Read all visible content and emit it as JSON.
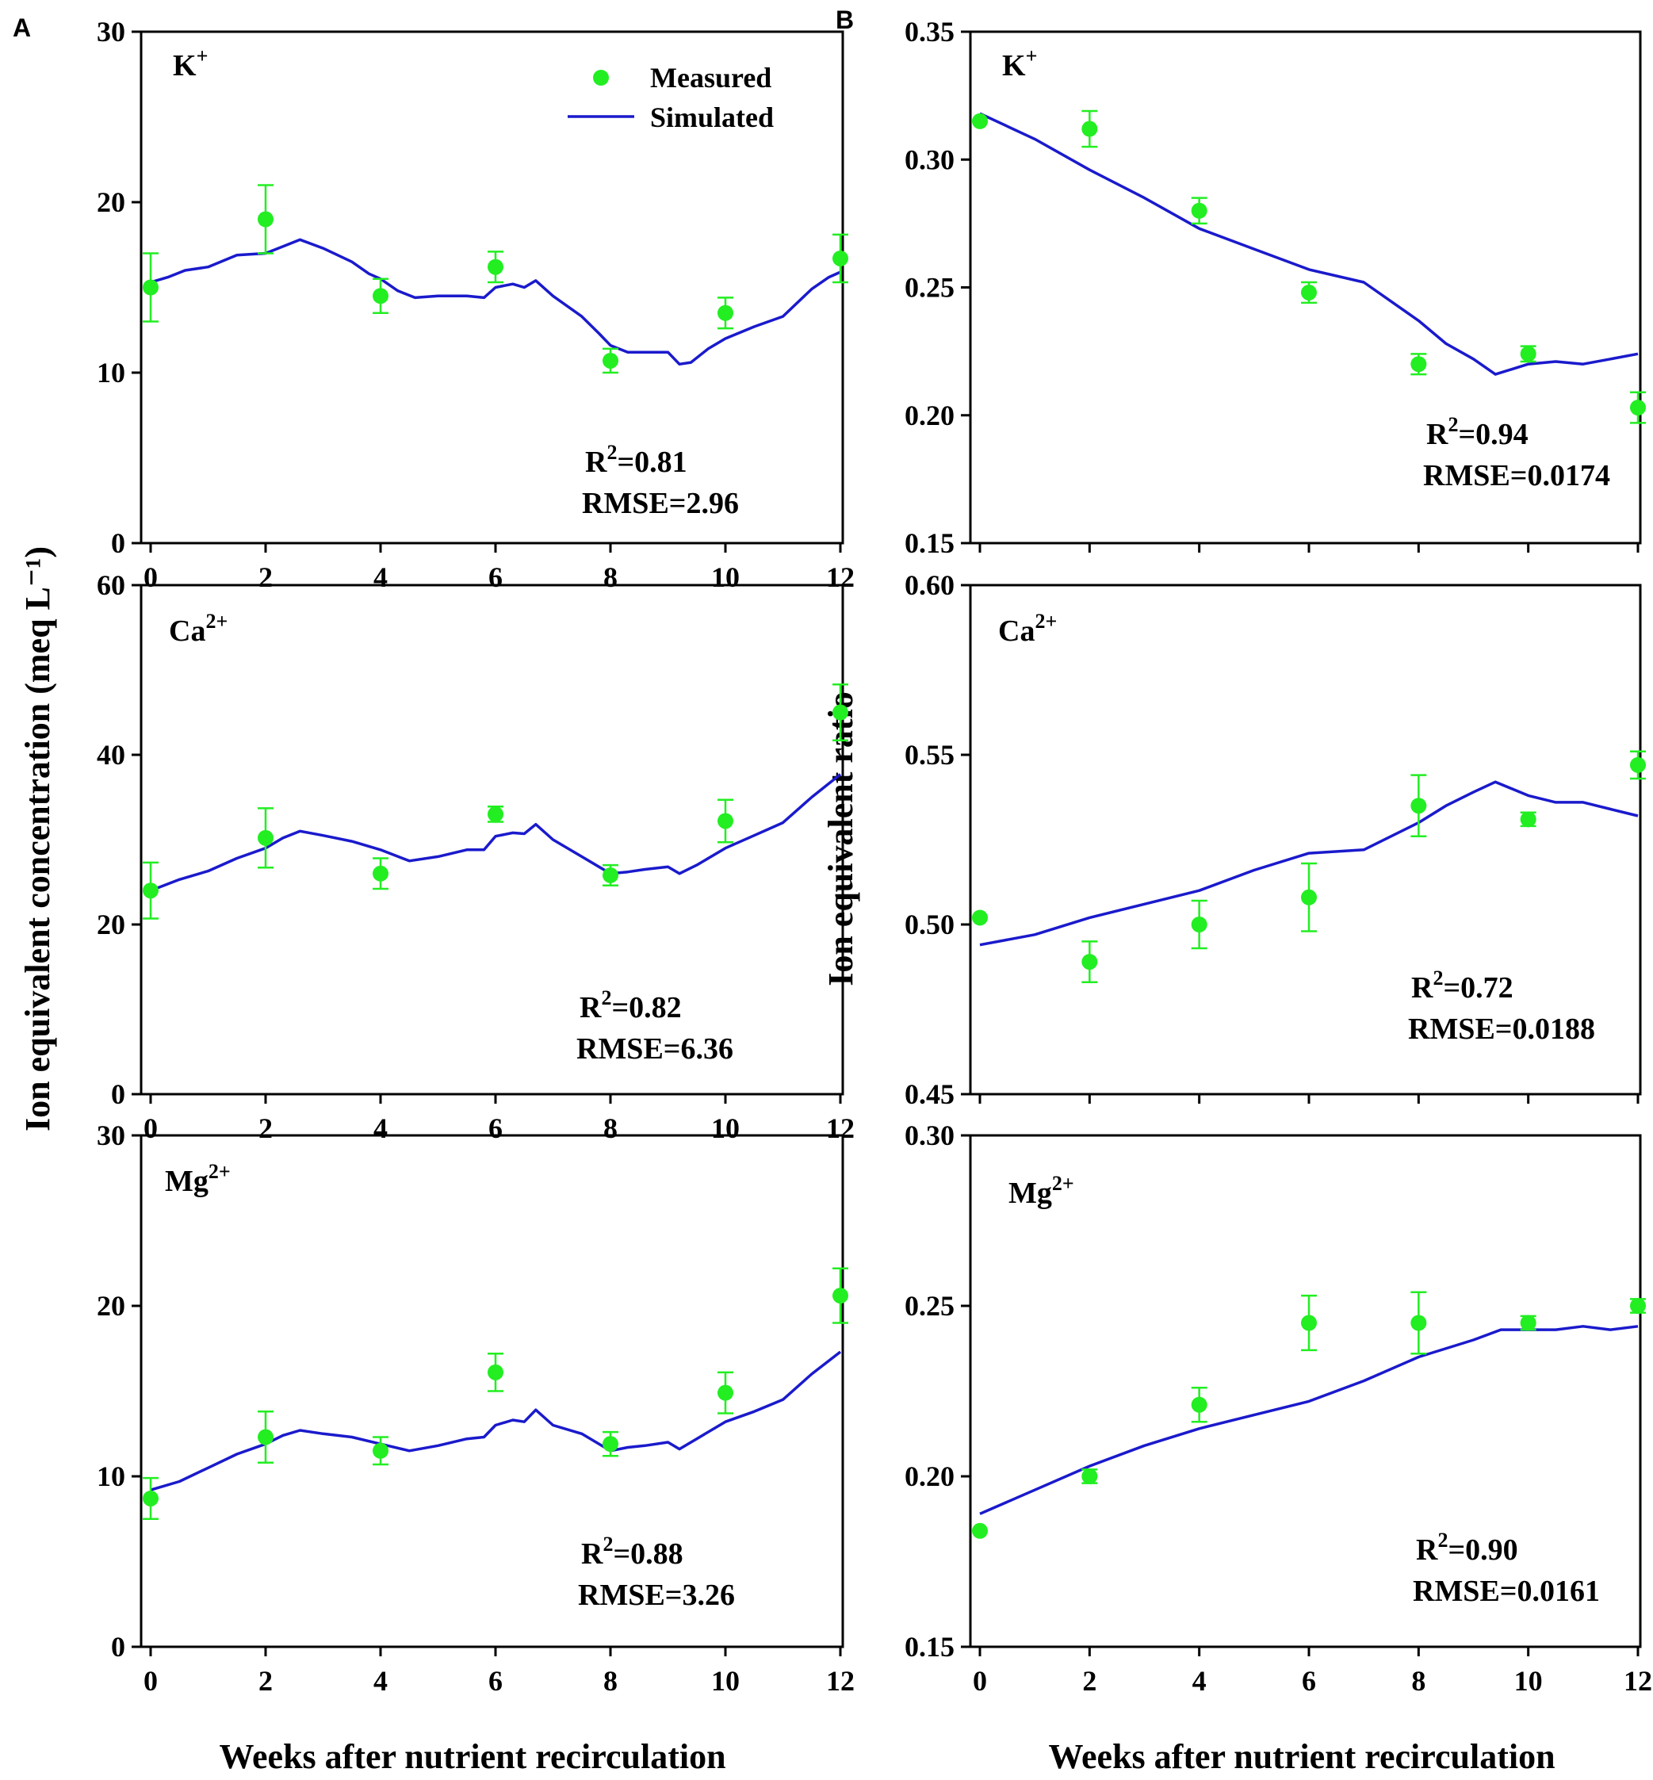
{
  "figure": {
    "panel_letters": [
      "A",
      "B"
    ],
    "ylabel_left": "Ion equivalent concentration (meq L⁻¹)",
    "ylabel_right": "Ion equivalent ratio",
    "xlabel": "Weeks after nutrient recirculation",
    "legend": {
      "measured": "Measured",
      "simulated": "Simulated"
    },
    "colors": {
      "measured": "#22ee22",
      "simulated": "#1a1acc",
      "frame": "#000000"
    }
  },
  "chart_data": [
    {
      "id": "A-K",
      "type": "line+scatter",
      "ion": "K",
      "ion_sup": "+",
      "xlim": [
        0,
        12
      ],
      "ylim": [
        0,
        30
      ],
      "yticks": [
        "0",
        "10",
        "20",
        "30"
      ],
      "xticks": [
        "0",
        "2",
        "4",
        "6",
        "8",
        "10",
        "12"
      ],
      "measured": {
        "x": [
          0,
          2,
          4,
          6,
          8,
          10,
          12
        ],
        "y": [
          15.0,
          19.0,
          14.5,
          16.2,
          10.7,
          13.5,
          16.7
        ],
        "err": [
          2.0,
          2.0,
          1.0,
          0.9,
          0.7,
          0.9,
          1.4
        ]
      },
      "simulated": {
        "x": [
          0,
          0.3,
          0.6,
          1.0,
          1.5,
          2.0,
          2.3,
          2.6,
          3.0,
          3.5,
          3.8,
          4.0,
          4.3,
          4.6,
          5.0,
          5.5,
          5.8,
          6.0,
          6.3,
          6.5,
          6.7,
          7.0,
          7.5,
          7.8,
          8.0,
          8.3,
          8.6,
          9.0,
          9.2,
          9.4,
          9.7,
          10.0,
          10.5,
          11.0,
          11.5,
          11.8,
          12.0
        ],
        "y": [
          15.3,
          15.6,
          16.0,
          16.2,
          16.9,
          17.0,
          17.4,
          17.8,
          17.3,
          16.5,
          15.8,
          15.5,
          14.8,
          14.4,
          14.5,
          14.5,
          14.4,
          15.0,
          15.2,
          15.0,
          15.4,
          14.5,
          13.3,
          12.3,
          11.6,
          11.2,
          11.2,
          11.2,
          10.5,
          10.6,
          11.4,
          12.0,
          12.7,
          13.3,
          14.9,
          15.6,
          15.9
        ]
      },
      "stats": {
        "r2_label": "R",
        "r2_value": "=0.81",
        "rmse": "RMSE=2.96"
      }
    },
    {
      "id": "A-Ca",
      "type": "line+scatter",
      "ion": "Ca",
      "ion_sup": "2+",
      "xlim": [
        0,
        12
      ],
      "ylim": [
        0,
        60
      ],
      "yticks": [
        "0",
        "20",
        "40",
        "60"
      ],
      "xticks": [
        "0",
        "2",
        "4",
        "6",
        "8",
        "10",
        "12"
      ],
      "measured": {
        "x": [
          0,
          2,
          4,
          6,
          8,
          10,
          12
        ],
        "y": [
          24.0,
          30.2,
          26.0,
          33.0,
          25.8,
          32.2,
          45.0
        ],
        "err": [
          3.3,
          3.5,
          1.8,
          0.9,
          1.2,
          2.5,
          3.3
        ]
      },
      "simulated": {
        "x": [
          0,
          0.5,
          1.0,
          1.5,
          2.0,
          2.3,
          2.6,
          3.0,
          3.5,
          4.0,
          4.5,
          5.0,
          5.5,
          5.8,
          6.0,
          6.3,
          6.5,
          6.7,
          7.0,
          7.5,
          8.0,
          8.3,
          8.6,
          9.0,
          9.2,
          9.5,
          10.0,
          10.5,
          11.0,
          11.5,
          12.0
        ],
        "y": [
          24.0,
          25.3,
          26.3,
          27.8,
          29.0,
          30.2,
          31.0,
          30.5,
          29.8,
          28.8,
          27.5,
          28.0,
          28.8,
          28.8,
          30.4,
          30.8,
          30.7,
          31.8,
          30.0,
          28.0,
          26.0,
          26.2,
          26.5,
          26.8,
          26.0,
          27.0,
          29.0,
          30.5,
          32.0,
          35.0,
          37.7
        ]
      },
      "stats": {
        "r2_label": "R",
        "r2_value": "=0.82",
        "rmse": "RMSE=6.36"
      }
    },
    {
      "id": "A-Mg",
      "type": "line+scatter",
      "ion": "Mg",
      "ion_sup": "2+",
      "xlim": [
        0,
        12
      ],
      "ylim": [
        0,
        30
      ],
      "yticks": [
        "0",
        "10",
        "20",
        "30"
      ],
      "xticks": [
        "0",
        "2",
        "4",
        "6",
        "8",
        "10",
        "12"
      ],
      "measured": {
        "x": [
          0,
          2,
          4,
          6,
          8,
          10,
          12
        ],
        "y": [
          8.7,
          12.3,
          11.5,
          16.1,
          11.9,
          14.9,
          20.6
        ],
        "err": [
          1.2,
          1.5,
          0.8,
          1.1,
          0.7,
          1.2,
          1.6
        ]
      },
      "simulated": {
        "x": [
          0,
          0.5,
          1.0,
          1.5,
          2.0,
          2.3,
          2.6,
          3.0,
          3.5,
          4.0,
          4.5,
          5.0,
          5.5,
          5.8,
          6.0,
          6.3,
          6.5,
          6.7,
          7.0,
          7.5,
          8.0,
          8.3,
          8.6,
          9.0,
          9.2,
          9.5,
          10.0,
          10.5,
          11.0,
          11.5,
          12.0
        ],
        "y": [
          9.2,
          9.7,
          10.5,
          11.3,
          11.9,
          12.4,
          12.7,
          12.5,
          12.3,
          11.9,
          11.5,
          11.8,
          12.2,
          12.3,
          13.0,
          13.3,
          13.2,
          13.9,
          13.0,
          12.5,
          11.5,
          11.7,
          11.8,
          12.0,
          11.6,
          12.2,
          13.2,
          13.8,
          14.5,
          16.0,
          17.3
        ]
      },
      "stats": {
        "r2_label": "R",
        "r2_value": "=0.88",
        "rmse": "RMSE=3.26"
      }
    },
    {
      "id": "B-K",
      "type": "line+scatter",
      "ion": "K",
      "ion_sup": "+",
      "xlim": [
        0,
        12
      ],
      "ylim": [
        0.15,
        0.35
      ],
      "yticks": [
        "0.15",
        "0.20",
        "0.25",
        "0.30",
        "0.35"
      ],
      "xticks": [
        "",
        "",
        "",
        "",
        "",
        "",
        ""
      ],
      "measured": {
        "x": [
          0,
          2,
          4,
          6,
          8,
          10,
          12
        ],
        "y": [
          0.315,
          0.312,
          0.28,
          0.248,
          0.22,
          0.224,
          0.203
        ],
        "err": [
          0.0,
          0.007,
          0.005,
          0.004,
          0.004,
          0.003,
          0.006
        ]
      },
      "simulated": {
        "x": [
          0,
          1.0,
          2.0,
          3.0,
          4.0,
          5.0,
          6.0,
          7.0,
          8.0,
          8.5,
          9.0,
          9.4,
          9.7,
          10.0,
          10.5,
          11.0,
          11.5,
          12.0
        ],
        "y": [
          0.318,
          0.308,
          0.296,
          0.285,
          0.273,
          0.265,
          0.257,
          0.252,
          0.237,
          0.228,
          0.222,
          0.216,
          0.218,
          0.22,
          0.221,
          0.22,
          0.222,
          0.224
        ]
      },
      "stats": {
        "r2_label": "R",
        "r2_value": "=0.94",
        "rmse": "RMSE=0.0174"
      }
    },
    {
      "id": "B-Ca",
      "type": "line+scatter",
      "ion": "Ca",
      "ion_sup": "2+",
      "xlim": [
        0,
        12
      ],
      "ylim": [
        0.45,
        0.6
      ],
      "yticks": [
        "0.45",
        "0.50",
        "0.55",
        "0.60"
      ],
      "xticks": [
        "",
        "",
        "",
        "",
        "",
        "",
        ""
      ],
      "measured": {
        "x": [
          0,
          2,
          4,
          6,
          8,
          10,
          12
        ],
        "y": [
          0.502,
          0.489,
          0.5,
          0.508,
          0.535,
          0.531,
          0.547
        ],
        "err": [
          0.0,
          0.006,
          0.007,
          0.01,
          0.009,
          0.002,
          0.004
        ]
      },
      "simulated": {
        "x": [
          0,
          1.0,
          2.0,
          3.0,
          4.0,
          5.0,
          6.0,
          7.0,
          8.0,
          8.5,
          9.0,
          9.4,
          9.7,
          10.0,
          10.5,
          11.0,
          11.5,
          12.0
        ],
        "y": [
          0.494,
          0.497,
          0.502,
          0.506,
          0.51,
          0.516,
          0.521,
          0.522,
          0.53,
          0.535,
          0.539,
          0.542,
          0.54,
          0.538,
          0.536,
          0.536,
          0.534,
          0.532
        ]
      },
      "stats": {
        "r2_label": "R",
        "r2_value": "=0.72",
        "rmse": "RMSE=0.0188"
      }
    },
    {
      "id": "B-Mg",
      "type": "line+scatter",
      "ion": "Mg",
      "ion_sup": "2+",
      "xlim": [
        0,
        12
      ],
      "ylim": [
        0.15,
        0.3
      ],
      "yticks": [
        "0.15",
        "0.20",
        "0.25",
        "0.30"
      ],
      "xticks": [
        "0",
        "2",
        "4",
        "6",
        "8",
        "10",
        "12"
      ],
      "measured": {
        "x": [
          0,
          2,
          4,
          6,
          8,
          10,
          12
        ],
        "y": [
          0.184,
          0.2,
          0.221,
          0.245,
          0.245,
          0.245,
          0.25
        ],
        "err": [
          0.0,
          0.002,
          0.005,
          0.008,
          0.009,
          0.002,
          0.002
        ]
      },
      "simulated": {
        "x": [
          0,
          1.0,
          2.0,
          3.0,
          4.0,
          5.0,
          6.0,
          7.0,
          8.0,
          9.0,
          9.5,
          10.0,
          10.5,
          11.0,
          11.5,
          12.0
        ],
        "y": [
          0.189,
          0.196,
          0.203,
          0.209,
          0.214,
          0.218,
          0.222,
          0.228,
          0.235,
          0.24,
          0.243,
          0.243,
          0.243,
          0.244,
          0.243,
          0.244
        ]
      },
      "stats": {
        "r2_label": "R",
        "r2_value": "=0.90",
        "rmse": "RMSE=0.0161"
      }
    }
  ]
}
